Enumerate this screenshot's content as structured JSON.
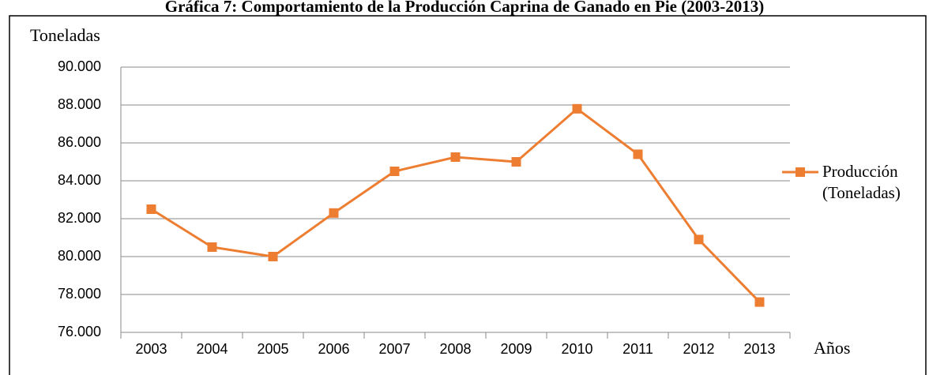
{
  "chart_data": {
    "type": "line",
    "title": "Gráfica 7: Comportamiento de la Producción Caprina de Ganado en Pie (2003-2013)",
    "ylabel": "Toneladas",
    "xlabel": "Años",
    "categories": [
      "2003",
      "2004",
      "2005",
      "2006",
      "2007",
      "2008",
      "2009",
      "2010",
      "2011",
      "2012",
      "2013"
    ],
    "series": [
      {
        "name": "Producción (Toneladas)",
        "color": "#ed7d31",
        "values": [
          82500,
          80500,
          80000,
          82300,
          84500,
          85250,
          85000,
          87800,
          85400,
          80900,
          77600
        ]
      }
    ],
    "ylim": [
      76000,
      90000
    ],
    "yticks": [
      {
        "value": 76000,
        "label": "76.000"
      },
      {
        "value": 78000,
        "label": "78.000"
      },
      {
        "value": 80000,
        "label": "80.000"
      },
      {
        "value": 82000,
        "label": "82.000"
      },
      {
        "value": 84000,
        "label": "84.000"
      },
      {
        "value": 86000,
        "label": "86.000"
      },
      {
        "value": 88000,
        "label": "88.000"
      },
      {
        "value": 90000,
        "label": "90.000"
      }
    ],
    "grid": true,
    "legend": "right"
  }
}
